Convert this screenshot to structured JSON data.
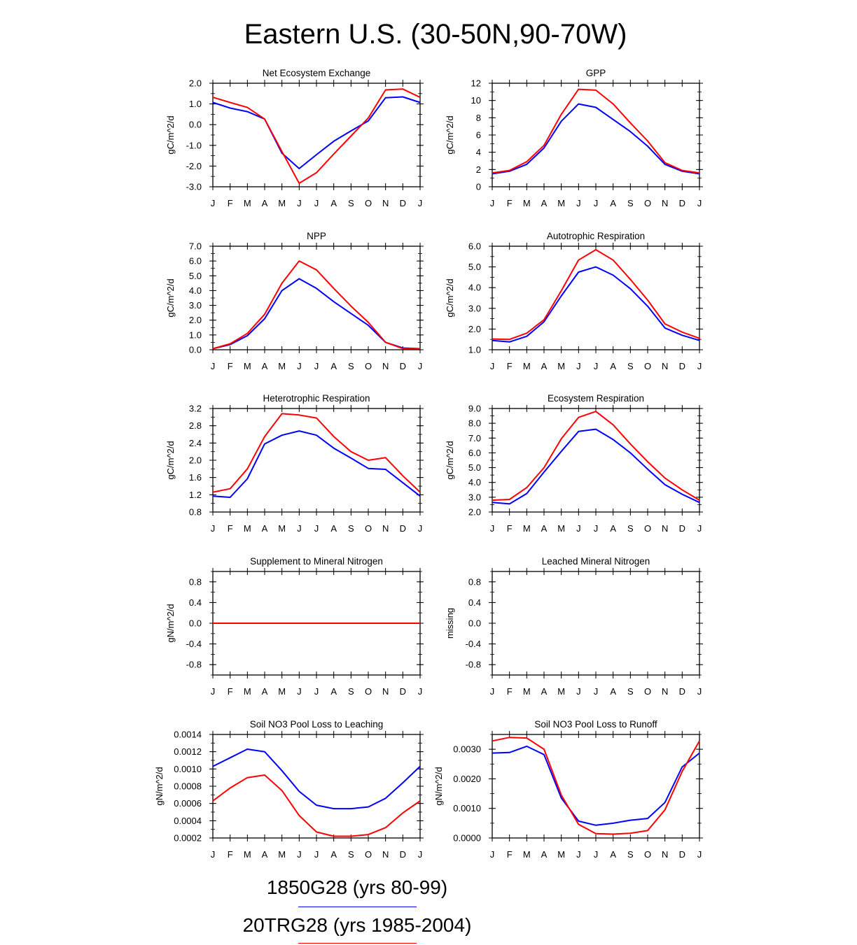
{
  "title": "Eastern U.S. (30-50N,90-70W)",
  "months": [
    "J",
    "F",
    "M",
    "A",
    "M",
    "J",
    "J",
    "A",
    "S",
    "O",
    "N",
    "D",
    "J"
  ],
  "series_meta": [
    {
      "name": "1850G28 (yrs 80-99)",
      "color": "#0000ff"
    },
    {
      "name": "20TRG28 (yrs 1985-2004)",
      "color": "#ff0000"
    }
  ],
  "chart_data": [
    {
      "type": "line",
      "title": "Net Ecosystem Exchange",
      "ylabel": "gC/m^2/d",
      "ylim": [
        -3.0,
        2.0
      ],
      "yticks": [
        -3.0,
        -2.0,
        -1.0,
        0.0,
        1.0,
        2.0
      ],
      "ytick_labels": [
        "-3.0",
        "-2.0",
        "-1.0",
        "0.0",
        "1.0",
        "2.0"
      ],
      "series": [
        {
          "values": [
            1.07,
            0.8,
            0.63,
            0.27,
            -1.38,
            -2.12,
            -1.45,
            -0.8,
            -0.3,
            0.18,
            1.3,
            1.34,
            1.07
          ]
        },
        {
          "values": [
            1.32,
            1.07,
            0.83,
            0.27,
            -1.3,
            -2.83,
            -2.32,
            -1.42,
            -0.55,
            0.32,
            1.68,
            1.72,
            1.32
          ]
        }
      ]
    },
    {
      "type": "line",
      "title": "GPP",
      "ylabel": "gC/m^2/d",
      "ylim": [
        0,
        12
      ],
      "yticks": [
        0,
        2,
        4,
        6,
        8,
        10,
        12
      ],
      "ytick_labels": [
        "0",
        "2",
        "4",
        "6",
        "8",
        "10",
        "12"
      ],
      "series": [
        {
          "values": [
            1.5,
            1.8,
            2.6,
            4.5,
            7.6,
            9.6,
            9.2,
            7.8,
            6.4,
            4.7,
            2.6,
            1.8,
            1.5
          ]
        },
        {
          "values": [
            1.6,
            1.9,
            2.9,
            4.8,
            8.4,
            11.3,
            11.2,
            9.6,
            7.4,
            5.3,
            2.8,
            1.9,
            1.6
          ]
        }
      ]
    },
    {
      "type": "line",
      "title": "NPP",
      "ylabel": "gC/m^2/d",
      "ylim": [
        0.0,
        7.0
      ],
      "yticks": [
        0.0,
        1.0,
        2.0,
        3.0,
        4.0,
        5.0,
        6.0,
        7.0
      ],
      "ytick_labels": [
        "0.0",
        "1.0",
        "2.0",
        "3.0",
        "4.0",
        "5.0",
        "6.0",
        "7.0"
      ],
      "series": [
        {
          "values": [
            0.07,
            0.35,
            0.95,
            2.1,
            4.0,
            4.8,
            4.15,
            3.25,
            2.45,
            1.65,
            0.5,
            0.12,
            0.07
          ]
        },
        {
          "values": [
            0.07,
            0.4,
            1.1,
            2.4,
            4.5,
            6.0,
            5.4,
            4.15,
            2.95,
            1.85,
            0.5,
            0.08,
            0.07
          ]
        }
      ]
    },
    {
      "type": "line",
      "title": "Autotrophic Respiration",
      "ylabel": "gC/m^2/d",
      "ylim": [
        1.0,
        6.0
      ],
      "yticks": [
        1.0,
        2.0,
        3.0,
        4.0,
        5.0,
        6.0
      ],
      "ytick_labels": [
        "1.0",
        "2.0",
        "3.0",
        "4.0",
        "5.0",
        "6.0"
      ],
      "series": [
        {
          "values": [
            1.45,
            1.38,
            1.65,
            2.35,
            3.6,
            4.75,
            5.0,
            4.6,
            3.95,
            3.1,
            2.05,
            1.7,
            1.45
          ]
        },
        {
          "values": [
            1.52,
            1.5,
            1.8,
            2.45,
            3.85,
            5.33,
            5.83,
            5.33,
            4.4,
            3.4,
            2.25,
            1.85,
            1.55
          ]
        }
      ]
    },
    {
      "type": "line",
      "title": "Heterotrophic Respiration",
      "ylabel": "gC/m^2/d",
      "ylim": [
        0.8,
        3.2
      ],
      "yticks": [
        0.8,
        1.2,
        1.6,
        2.0,
        2.4,
        2.8,
        3.2
      ],
      "ytick_labels": [
        "0.8",
        "1.2",
        "1.6",
        "2.0",
        "2.4",
        "2.8",
        "3.2"
      ],
      "series": [
        {
          "values": [
            1.17,
            1.14,
            1.57,
            2.38,
            2.58,
            2.68,
            2.58,
            2.28,
            2.05,
            1.81,
            1.79,
            1.48,
            1.17
          ]
        },
        {
          "values": [
            1.26,
            1.34,
            1.8,
            2.55,
            3.08,
            3.05,
            2.98,
            2.55,
            2.2,
            2.0,
            2.06,
            1.64,
            1.26
          ]
        }
      ]
    },
    {
      "type": "line",
      "title": "Ecosystem Respiration",
      "ylabel": "gC/m^2/d",
      "ylim": [
        2.0,
        9.0
      ],
      "yticks": [
        2.0,
        3.0,
        4.0,
        5.0,
        6.0,
        7.0,
        8.0,
        9.0
      ],
      "ytick_labels": [
        "2.0",
        "3.0",
        "4.0",
        "5.0",
        "6.0",
        "7.0",
        "8.0",
        "9.0"
      ],
      "series": [
        {
          "values": [
            2.65,
            2.55,
            3.25,
            4.7,
            6.1,
            7.45,
            7.6,
            6.9,
            6.0,
            4.9,
            3.85,
            3.2,
            2.65
          ]
        },
        {
          "values": [
            2.8,
            2.85,
            3.65,
            5.0,
            6.95,
            8.4,
            8.8,
            7.9,
            6.6,
            5.4,
            4.3,
            3.5,
            2.8
          ]
        }
      ]
    },
    {
      "type": "line",
      "title": "Supplement to Mineral Nitrogen",
      "ylabel": "gN/m^2/d",
      "ylim": [
        -1.0,
        1.0
      ],
      "yticks": [
        -0.8,
        -0.4,
        0.0,
        0.4,
        0.8
      ],
      "ytick_labels": [
        "-0.8",
        "-0.4",
        "0.0",
        "0.4",
        "0.8"
      ],
      "series": [
        {
          "values": [
            0,
            0,
            0,
            0,
            0,
            0,
            0,
            0,
            0,
            0,
            0,
            0,
            0
          ]
        },
        {
          "values": [
            0,
            0,
            0,
            0,
            0,
            0,
            0,
            0,
            0,
            0,
            0,
            0,
            0
          ]
        }
      ]
    },
    {
      "type": "line",
      "title": "Leached Mineral Nitrogen",
      "ylabel": "missing",
      "ylim": [
        -1.0,
        1.0
      ],
      "yticks": [
        -0.8,
        -0.4,
        0.0,
        0.4,
        0.8
      ],
      "ytick_labels": [
        "-0.8",
        "-0.4",
        "0.0",
        "0.4",
        "0.8"
      ],
      "series": []
    },
    {
      "type": "line",
      "title": "Soil NO3 Pool Loss to Leaching",
      "ylabel": "gN/m^2/d",
      "ylim": [
        0.0002,
        0.0014
      ],
      "yticks": [
        0.0002,
        0.0004,
        0.0006,
        0.0008,
        0.001,
        0.0012,
        0.0014
      ],
      "ytick_labels": [
        "0.0002",
        "0.0004",
        "0.0006",
        "0.0008",
        "0.0010",
        "0.0012",
        "0.0014"
      ],
      "series": [
        {
          "values": [
            0.00103,
            0.00113,
            0.00123,
            0.0012,
            0.00098,
            0.00074,
            0.00058,
            0.00054,
            0.00054,
            0.00056,
            0.00066,
            0.00084,
            0.00103
          ]
        },
        {
          "values": [
            0.00063,
            0.00078,
            0.0009,
            0.00093,
            0.00075,
            0.00046,
            0.00027,
            0.00022,
            0.00022,
            0.00024,
            0.00032,
            0.00049,
            0.00063
          ]
        }
      ]
    },
    {
      "type": "line",
      "title": "Soil NO3 Pool Loss to Runoff",
      "ylabel": "gN/m^2/d",
      "ylim": [
        0.0,
        0.0035
      ],
      "yticks": [
        0.0,
        0.001,
        0.002,
        0.003
      ],
      "ytick_labels": [
        "0.0000",
        "0.0010",
        "0.0020",
        "0.0030"
      ],
      "series": [
        {
          "values": [
            0.00287,
            0.00289,
            0.0031,
            0.00282,
            0.00135,
            0.00057,
            0.00043,
            0.0005,
            0.0006,
            0.00066,
            0.0012,
            0.0024,
            0.00287
          ]
        },
        {
          "values": [
            0.00328,
            0.0034,
            0.00338,
            0.003,
            0.00145,
            0.00046,
            0.00015,
            0.00013,
            0.00016,
            0.00025,
            0.00095,
            0.00225,
            0.00328
          ]
        }
      ]
    }
  ]
}
